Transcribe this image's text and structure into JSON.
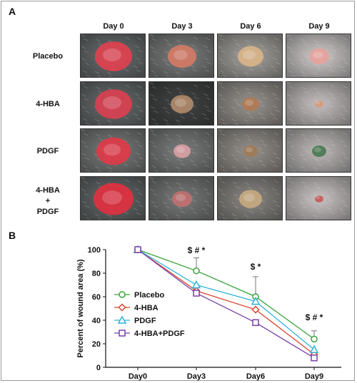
{
  "panel_a": {
    "label": "A",
    "columns": [
      "Day 0",
      "Day 3",
      "Day 6",
      "Day 9"
    ],
    "rows": [
      {
        "label_lines": [
          "Placebo"
        ]
      },
      {
        "label_lines": [
          "4-HBA"
        ]
      },
      {
        "label_lines": [
          "PDGF"
        ]
      },
      {
        "label_lines": [
          "4-HBA",
          "+",
          "PDGF"
        ]
      }
    ]
  },
  "panel_b": {
    "label": "B"
  },
  "chart_data": {
    "type": "line",
    "xlabel": "",
    "ylabel": "Percent of wound area (%)",
    "categories": [
      "Day0",
      "Day3",
      "Day6",
      "Day9"
    ],
    "ylim": [
      0,
      100
    ],
    "yticks": [
      "0",
      "20",
      "40",
      "60",
      "80",
      "100"
    ],
    "legend_position": "left-bottom",
    "series": [
      {
        "name": "Placebo",
        "values": [
          100,
          82,
          60,
          24
        ],
        "error": [
          0,
          11,
          17,
          7
        ],
        "color": "#3aa33a",
        "marker": "circle"
      },
      {
        "name": "4-HBA",
        "values": [
          100,
          65,
          49,
          11
        ],
        "error": [
          0,
          0,
          0,
          0
        ],
        "color": "#d9452f",
        "marker": "diamond"
      },
      {
        "name": "PDGF",
        "values": [
          100,
          70,
          56,
          15
        ],
        "error": [
          0,
          0,
          0,
          0
        ],
        "color": "#2fb3d9",
        "marker": "triangle"
      },
      {
        "name": "4-HBA+PDGF",
        "values": [
          100,
          63,
          38,
          8
        ],
        "error": [
          0,
          0,
          0,
          0
        ],
        "color": "#7a3fa8",
        "marker": "square"
      }
    ],
    "annotations": [
      {
        "text": "$ # *",
        "category": "Day3",
        "y": 97
      },
      {
        "text": "$ *",
        "category": "Day6",
        "y": 83
      },
      {
        "text": "$ # *",
        "category": "Day9",
        "y": 40
      }
    ]
  }
}
